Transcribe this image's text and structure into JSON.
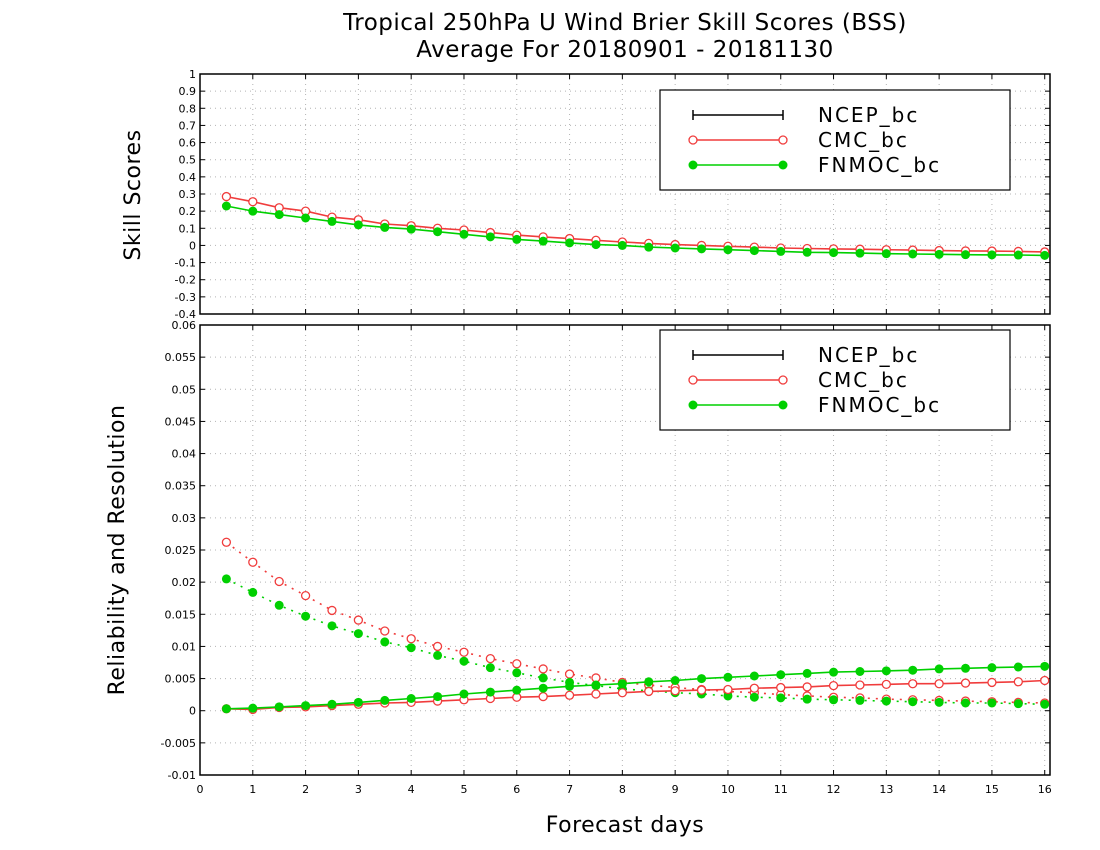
{
  "figure": {
    "title_line1": "Tropical 250hPa U Wind Brier Skill Scores (BSS)",
    "title_line2": "Average For 20180901 - 20181130",
    "xlabel": "Forecast days",
    "colors": {
      "NCEP_bc": "#000000",
      "CMC_bc": "#f03c3c",
      "FNMOC_bc": "#00d000"
    }
  },
  "chart_data": [
    {
      "type": "line",
      "ylabel": "Skill Scores",
      "xlim": [
        0,
        16.1
      ],
      "ylim": [
        -0.4,
        1
      ],
      "xticks": [
        "0",
        "1",
        "2",
        "3",
        "4",
        "5",
        "6",
        "7",
        "8",
        "9",
        "10",
        "11",
        "12",
        "13",
        "14",
        "15",
        "16"
      ],
      "yticks": [
        "-0.4",
        "-0.3",
        "-0.2",
        "-0.1",
        "0",
        "0.1",
        "0.2",
        "0.3",
        "0.4",
        "0.5",
        "0.6",
        "0.7",
        "0.8",
        "0.9",
        "1"
      ],
      "grid": true,
      "legend_position": "top-right",
      "legend": [
        "NCEP_bc",
        "CMC_bc",
        "FNMOC_bc"
      ],
      "x": [
        0.5,
        1,
        1.5,
        2,
        2.5,
        3,
        3.5,
        4,
        4.5,
        5,
        5.5,
        6,
        6.5,
        7,
        7.5,
        8,
        8.5,
        9,
        9.5,
        10,
        10.5,
        11,
        11.5,
        12,
        12.5,
        13,
        13.5,
        14,
        14.5,
        15,
        15.5,
        16
      ],
      "series": [
        {
          "name": "CMC_bc",
          "style": "solid",
          "marker": "open-circle",
          "values": [
            0.285,
            0.255,
            0.22,
            0.2,
            0.165,
            0.15,
            0.125,
            0.115,
            0.1,
            0.09,
            0.075,
            0.06,
            0.05,
            0.04,
            0.03,
            0.02,
            0.012,
            0.005,
            0.0,
            -0.005,
            -0.01,
            -0.015,
            -0.018,
            -0.02,
            -0.022,
            -0.025,
            -0.027,
            -0.03,
            -0.032,
            -0.033,
            -0.035,
            -0.038
          ]
        },
        {
          "name": "FNMOC_bc",
          "style": "solid",
          "marker": "filled-circle",
          "values": [
            0.23,
            0.2,
            0.18,
            0.16,
            0.14,
            0.12,
            0.105,
            0.095,
            0.08,
            0.065,
            0.05,
            0.035,
            0.025,
            0.015,
            0.005,
            0.0,
            -0.01,
            -0.015,
            -0.02,
            -0.025,
            -0.03,
            -0.035,
            -0.04,
            -0.042,
            -0.045,
            -0.048,
            -0.05,
            -0.052,
            -0.054,
            -0.055,
            -0.056,
            -0.058
          ]
        }
      ]
    },
    {
      "type": "line",
      "ylabel": "Reliability and Resolution",
      "xlim": [
        0,
        16.1
      ],
      "ylim": [
        -0.01,
        0.06
      ],
      "xticks": [
        "0",
        "1",
        "2",
        "3",
        "4",
        "5",
        "6",
        "7",
        "8",
        "9",
        "10",
        "11",
        "12",
        "13",
        "14",
        "15",
        "16"
      ],
      "yticks": [
        "-0.01",
        "-0.005",
        "0",
        "0.005",
        "0.01",
        "0.015",
        "0.02",
        "0.025",
        "0.03",
        "0.035",
        "0.04",
        "0.045",
        "0.05",
        "0.055",
        "0.06"
      ],
      "grid": true,
      "legend_position": "top-right",
      "legend": [
        "NCEP_bc",
        "CMC_bc",
        "FNMOC_bc"
      ],
      "x": [
        0.5,
        1,
        1.5,
        2,
        2.5,
        3,
        3.5,
        4,
        4.5,
        5,
        5.5,
        6,
        6.5,
        7,
        7.5,
        8,
        8.5,
        9,
        9.5,
        10,
        10.5,
        11,
        11.5,
        12,
        12.5,
        13,
        13.5,
        14,
        14.5,
        15,
        15.5,
        16
      ],
      "series": [
        {
          "name": "CMC_bc",
          "style": "dotted",
          "marker": "open-circle",
          "values": [
            0.0262,
            0.0231,
            0.0201,
            0.0179,
            0.0156,
            0.0141,
            0.0124,
            0.0112,
            0.01,
            0.0091,
            0.0081,
            0.0073,
            0.0065,
            0.0057,
            0.0051,
            0.0044,
            0.004,
            0.0036,
            0.0033,
            0.003,
            0.0028,
            0.0025,
            0.0023,
            0.0021,
            0.002,
            0.0018,
            0.0017,
            0.0016,
            0.0015,
            0.0014,
            0.0013,
            0.0012
          ]
        },
        {
          "name": "FNMOC_bc",
          "style": "dotted",
          "marker": "filled-circle",
          "values": [
            0.0205,
            0.0184,
            0.0164,
            0.0147,
            0.0132,
            0.012,
            0.0107,
            0.0098,
            0.0086,
            0.0077,
            0.0067,
            0.0059,
            0.0051,
            0.0044,
            0.0039,
            0.0034,
            0.0031,
            0.0028,
            0.0026,
            0.0023,
            0.0021,
            0.002,
            0.0018,
            0.0017,
            0.0016,
            0.0015,
            0.0014,
            0.0013,
            0.0012,
            0.0012,
            0.0011,
            0.001
          ]
        },
        {
          "name": "CMC_bc",
          "style": "solid",
          "marker": "open-circle",
          "values": [
            0.0003,
            0.0002,
            0.0005,
            0.0006,
            0.0008,
            0.001,
            0.0012,
            0.0013,
            0.0015,
            0.0017,
            0.0019,
            0.0021,
            0.0022,
            0.0024,
            0.0026,
            0.0028,
            0.003,
            0.0031,
            0.0032,
            0.0033,
            0.0035,
            0.0036,
            0.0037,
            0.0039,
            0.004,
            0.0041,
            0.0042,
            0.0042,
            0.0043,
            0.0044,
            0.0045,
            0.0047
          ]
        },
        {
          "name": "FNMOC_bc",
          "style": "solid",
          "marker": "filled-circle",
          "values": [
            0.0003,
            0.0004,
            0.0006,
            0.0008,
            0.001,
            0.0013,
            0.0016,
            0.0019,
            0.0022,
            0.0026,
            0.0029,
            0.0032,
            0.0035,
            0.0038,
            0.004,
            0.0042,
            0.0045,
            0.0047,
            0.005,
            0.0052,
            0.0054,
            0.0056,
            0.0058,
            0.006,
            0.0061,
            0.0062,
            0.0063,
            0.0065,
            0.0066,
            0.0067,
            0.0068,
            0.0069
          ]
        }
      ]
    }
  ]
}
